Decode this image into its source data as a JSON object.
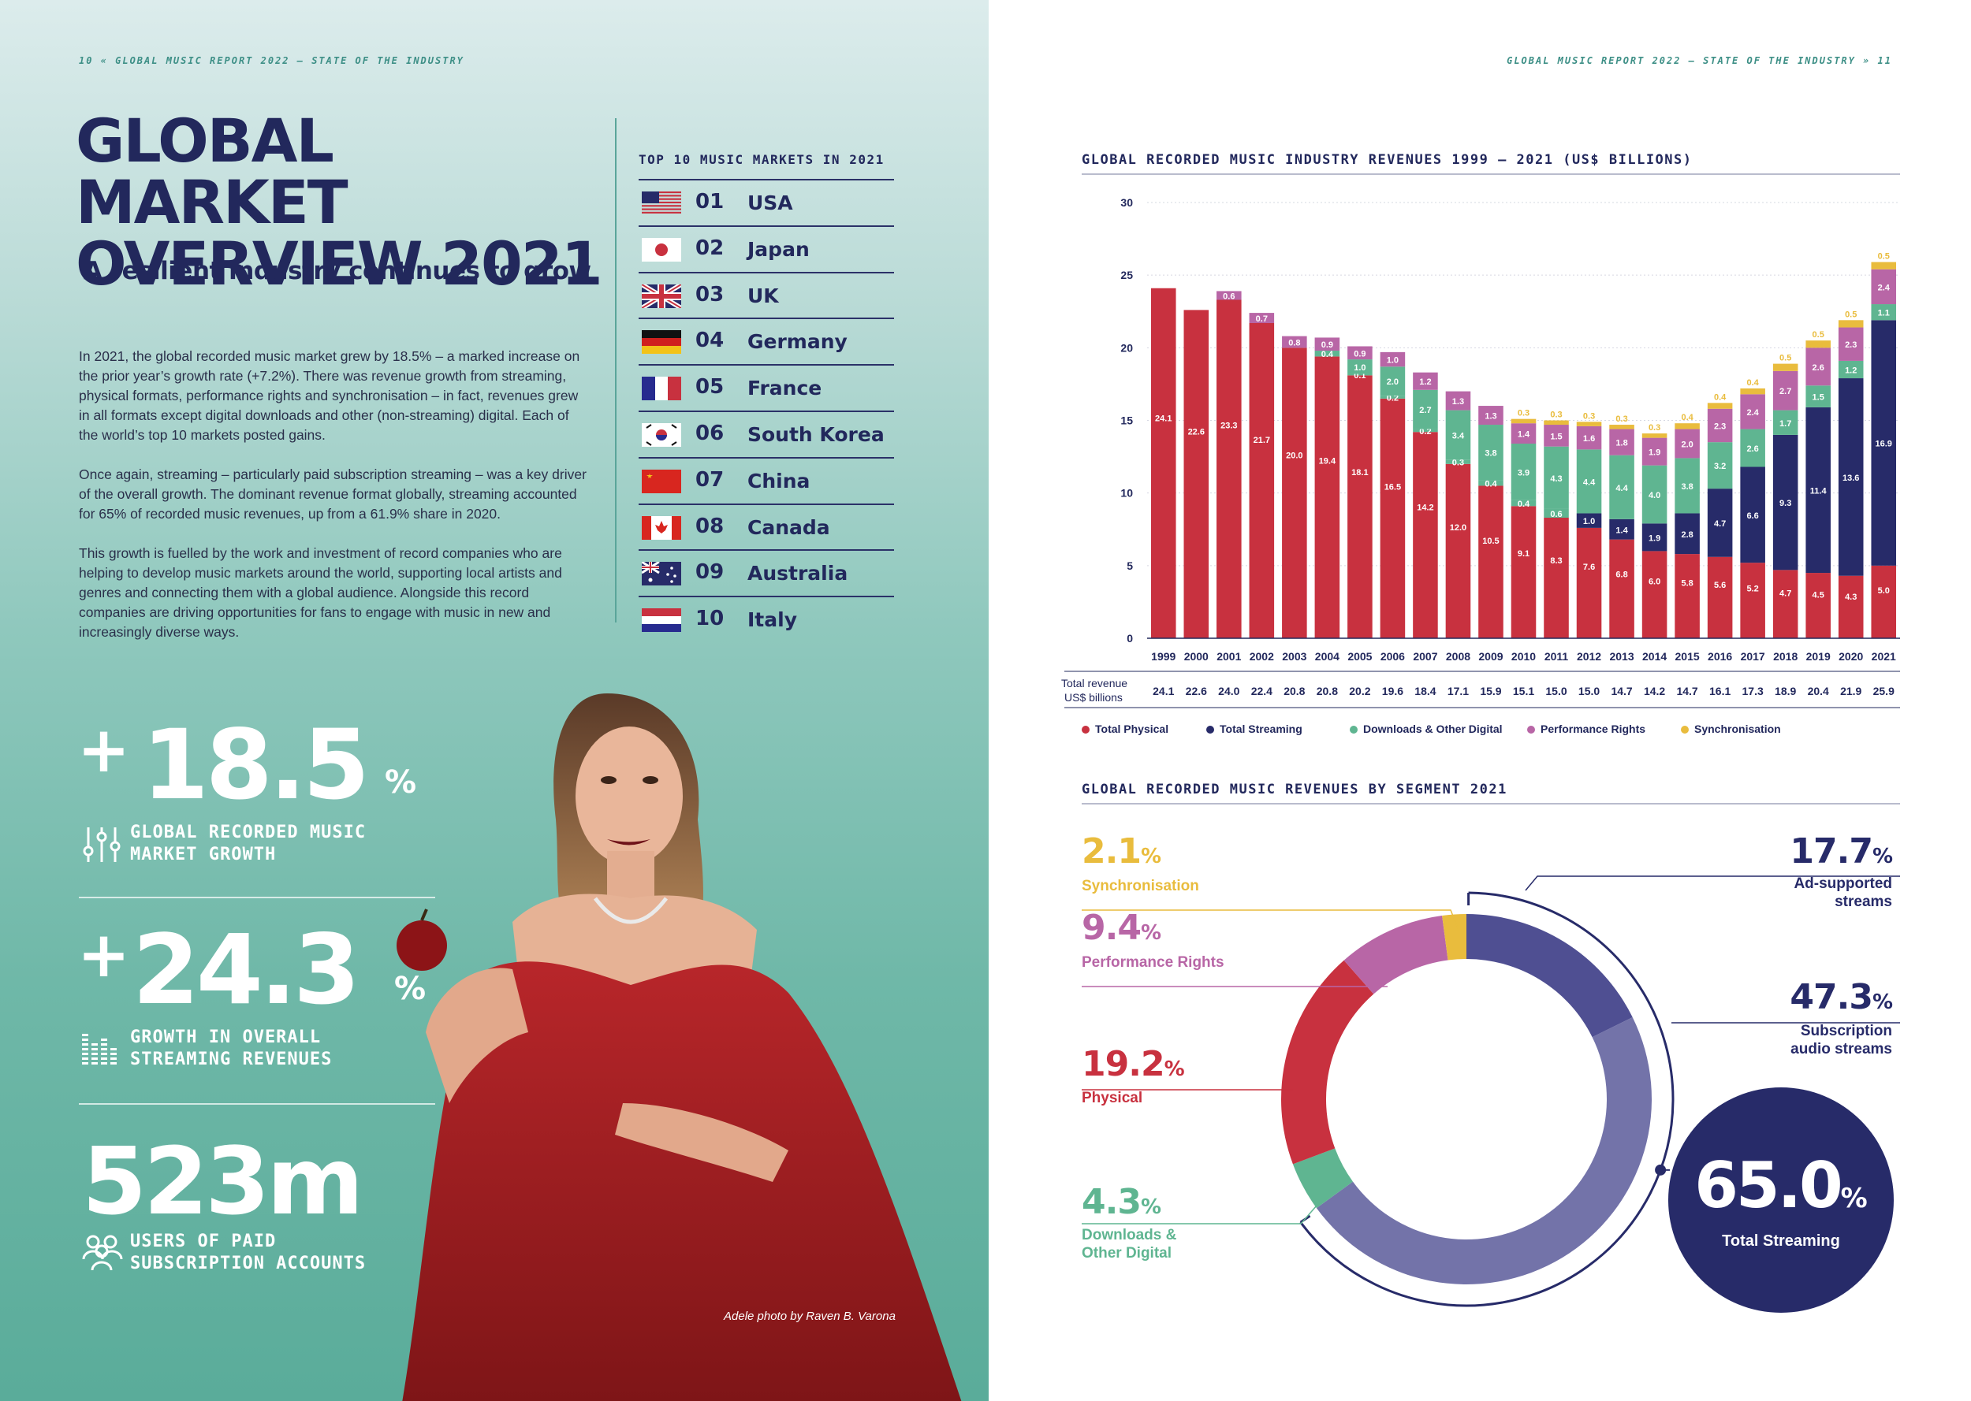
{
  "running_heads": {
    "left": "10 « GLOBAL MUSIC REPORT 2022 – STATE OF THE INDUSTRY",
    "right": "GLOBAL MUSIC REPORT 2022 – STATE OF THE INDUSTRY » 11"
  },
  "header": {
    "title_line1": "GLOBAL MARKET",
    "title_line2": "OVERVIEW 2021",
    "subtitle": "A resilient industry continues to grow"
  },
  "intro": {
    "p1": "In 2021, the global recorded music market grew by 18.5% – a marked increase on the prior year’s growth rate (+7.2%). There was revenue growth from streaming, physical formats, performance rights and synchronisation – in fact, revenues grew in all formats except digital downloads and other (non-streaming) digital. Each of the world’s top 10 markets posted gains.",
    "p2": "Once again, streaming – particularly paid subscription streaming – was a key driver of the overall growth. The dominant revenue format globally, streaming accounted for 65% of recorded music revenues, up from a 61.9% share in 2020.",
    "p3": "This growth is fuelled by the work and investment of record companies who are helping to develop music markets around the world, supporting local artists and genres and connecting them with a global audience.  Alongside this record companies are driving opportunities for fans to engage with music in new and increasingly diverse ways."
  },
  "stats": [
    {
      "prefix": "+",
      "value": "18.5",
      "suffix": "%",
      "label_line1": "GLOBAL RECORDED MUSIC",
      "label_line2": "MARKET GROWTH",
      "icon": "sliders-icon"
    },
    {
      "prefix": "+",
      "value": "24.3",
      "suffix": "%",
      "label_line1": "GROWTH IN OVERALL",
      "label_line2": "STREAMING REVENUES",
      "icon": "equalizer-icon"
    },
    {
      "prefix": "",
      "value": "523m",
      "suffix": "",
      "label_line1": "USERS OF PAID",
      "label_line2": "SUBSCRIPTION ACCOUNTS",
      "icon": "users-icon"
    }
  ],
  "top_markets": {
    "title": "TOP 10 MUSIC MARKETS IN 2021",
    "items": [
      {
        "rank": "01",
        "country": "USA",
        "flag": "usa-flag-icon"
      },
      {
        "rank": "02",
        "country": "Japan",
        "flag": "japan-flag-icon"
      },
      {
        "rank": "03",
        "country": "UK",
        "flag": "uk-flag-icon"
      },
      {
        "rank": "04",
        "country": "Germany",
        "flag": "germany-flag-icon"
      },
      {
        "rank": "05",
        "country": "France",
        "flag": "france-flag-icon"
      },
      {
        "rank": "06",
        "country": "South Korea",
        "flag": "south-korea-flag-icon"
      },
      {
        "rank": "07",
        "country": "China",
        "flag": "china-flag-icon"
      },
      {
        "rank": "08",
        "country": "Canada",
        "flag": "canada-flag-icon"
      },
      {
        "rank": "09",
        "country": "Australia",
        "flag": "australia-flag-icon"
      },
      {
        "rank": "10",
        "country": "Italy",
        "flag": "italy-flag-icon"
      }
    ]
  },
  "photo_credit": "Adele photo by Raven B. Varona",
  "colors": {
    "physical": "#c8313f",
    "streaming": "#272b69",
    "downloads": "#5fb591",
    "performance": "#b866a6",
    "sync": "#e9bc3d",
    "ad_supported": "#4f4f92",
    "subscription": "#7373a9"
  },
  "chart_data": [
    {
      "type": "bar",
      "stacked": true,
      "title": "GLOBAL RECORDED MUSIC INDUSTRY REVENUES 1999 – 2021 (US$ BILLIONS)",
      "categories": [
        "1999",
        "2000",
        "2001",
        "2002",
        "2003",
        "2004",
        "2005",
        "2006",
        "2007",
        "2008",
        "2009",
        "2010",
        "2011",
        "2012",
        "2013",
        "2014",
        "2015",
        "2016",
        "2017",
        "2018",
        "2019",
        "2020",
        "2021"
      ],
      "ylim": [
        0,
        30
      ],
      "yticks": [
        0,
        5,
        10,
        15,
        20,
        25,
        30
      ],
      "grid": true,
      "legend_position": "bottom",
      "series": [
        {
          "name": "Total Physical",
          "values": [
            24.1,
            22.6,
            23.3,
            21.7,
            20.0,
            19.4,
            18.1,
            16.5,
            14.2,
            12.0,
            10.5,
            9.1,
            8.3,
            7.6,
            6.8,
            6.0,
            5.8,
            5.6,
            5.2,
            4.7,
            4.5,
            4.3,
            5.0
          ],
          "labels": [
            "24.1",
            "22.6",
            "23.3",
            "21.7",
            "20.0",
            "19.4",
            "18.1",
            "16.5",
            "14.2",
            "12.0",
            "10.5",
            "9.1",
            "8.3",
            "7.6",
            "6.8",
            "6.0",
            "5.8",
            "5.6",
            "5.2",
            "4.7",
            "4.5",
            "4.3",
            "5.0"
          ]
        },
        {
          "name": "Total Streaming",
          "values": [
            0,
            0,
            0,
            0,
            0,
            0,
            0,
            0,
            0,
            0,
            0,
            0,
            0,
            1.0,
            1.4,
            1.9,
            2.8,
            4.7,
            6.6,
            9.3,
            11.4,
            13.6,
            16.9
          ],
          "labels": [
            "",
            "",
            "",
            "",
            "",
            "",
            "",
            "",
            "",
            "",
            "",
            "",
            "",
            "1.0",
            "1.4",
            "1.9",
            "2.8",
            "4.7",
            "6.6",
            "9.3",
            "11.4",
            "13.6",
            "16.9"
          ]
        },
        {
          "name": "Downloads & Other Digital",
          "values": [
            0,
            0,
            0,
            0,
            0,
            0.4,
            0.1,
            0.2,
            0.2,
            0.3,
            0.4,
            0.4,
            0.6,
            4.4,
            4.4,
            4.0,
            3.8,
            3.2,
            2.6,
            1.7,
            1.5,
            1.2,
            1.1
          ],
          "labels": [
            "",
            "",
            "",
            "",
            "",
            "0.4",
            "0.1",
            "0.2",
            "0.2",
            "0.3",
            "0.4",
            "0.4",
            "0.6",
            "4.4",
            "4.4",
            "4.0",
            "3.8",
            "3.2",
            "2.6",
            "1.7",
            "1.5",
            "1.2",
            "1.1"
          ]
        },
        {
          "name": "Downloads & Other Digital (upper)",
          "values": [
            0,
            0,
            0,
            0,
            0,
            0,
            1.0,
            2.0,
            2.7,
            3.4,
            3.8,
            3.9,
            4.3,
            0,
            0,
            0,
            0,
            0,
            0,
            0,
            0,
            0,
            0
          ],
          "labels": [
            "",
            "",
            "",
            "",
            "",
            "",
            "1.0",
            "2.0",
            "2.7",
            "3.4",
            "3.8",
            "3.9",
            "4.3",
            "",
            "",
            "",
            "",
            "",
            "",
            "",
            "",
            "",
            ""
          ]
        },
        {
          "name": "Performance Rights",
          "values": [
            0,
            0,
            0.6,
            0.7,
            0.8,
            0.9,
            0.9,
            1.0,
            1.2,
            1.3,
            1.3,
            1.4,
            1.5,
            1.6,
            1.8,
            1.9,
            2.0,
            2.3,
            2.4,
            2.7,
            2.6,
            2.3,
            2.4
          ],
          "labels": [
            "",
            "",
            "0.6",
            "0.7",
            "0.8",
            "0.9",
            "0.9",
            "1.0",
            "1.2",
            "1.3",
            "1.3",
            "1.4",
            "1.5",
            "1.6",
            "1.8",
            "1.9",
            "2.0",
            "2.3",
            "2.4",
            "2.7",
            "2.6",
            "2.3",
            "2.4"
          ]
        },
        {
          "name": "Synchronisation",
          "values": [
            0,
            0,
            0,
            0,
            0,
            0,
            0,
            0,
            0,
            0,
            0,
            0.3,
            0.3,
            0.3,
            0.3,
            0.3,
            0.4,
            0.4,
            0.4,
            0.5,
            0.5,
            0.5,
            0.5
          ],
          "labels": [
            "",
            "",
            "",
            "",
            "",
            "",
            "",
            "",
            "",
            "",
            "",
            "0.3",
            "0.3",
            "0.3",
            "0.3",
            "0.3",
            "0.4",
            "0.4",
            "0.4",
            "0.5",
            "0.5",
            "0.5",
            "0.5"
          ]
        }
      ],
      "total_revenue_label_line1": "Total revenue",
      "total_revenue_label_line2": "US$ billions",
      "totals": [
        "24.1",
        "22.6",
        "24.0",
        "22.4",
        "20.8",
        "20.8",
        "20.2",
        "19.6",
        "18.4",
        "17.1",
        "15.9",
        "15.1",
        "15.0",
        "15.0",
        "14.7",
        "14.2",
        "14.7",
        "16.1",
        "17.3",
        "18.9",
        "20.4",
        "21.9",
        "25.9"
      ],
      "legend": [
        "Total Physical",
        "Total Streaming",
        "Downloads & Other Digital",
        "Performance Rights",
        "Synchronisation"
      ]
    },
    {
      "type": "pie",
      "donut": true,
      "title": "GLOBAL RECORDED MUSIC REVENUES BY SEGMENT 2021",
      "slices": [
        {
          "name": "Ad-supported streams",
          "value": 17.7,
          "pct": "17.7",
          "color": "#4f4f92"
        },
        {
          "name": "Subscription audio streams",
          "value": 47.3,
          "pct": "47.3",
          "color": "#7373a9"
        },
        {
          "name": "Downloads & Other Digital",
          "value": 4.3,
          "pct": "4.3",
          "color": "#5fb591"
        },
        {
          "name": "Physical",
          "value": 19.2,
          "pct": "19.2",
          "color": "#c8313f"
        },
        {
          "name": "Performance Rights",
          "value": 9.4,
          "pct": "9.4",
          "color": "#b866a6"
        },
        {
          "name": "Synchronisation",
          "value": 2.1,
          "pct": "2.1",
          "color": "#e9bc3d"
        }
      ],
      "labels": {
        "sync": "Synchronisation",
        "performance": "Performance Rights",
        "physical": "Physical",
        "downloads_line1": "Downloads &",
        "downloads_line2": "Other Digital",
        "ad_line1": "Ad-supported",
        "ad_line2": "streams",
        "sub_line1": "Subscription",
        "sub_line2": "audio streams"
      },
      "total_streaming": {
        "value": "65.0",
        "suffix": "%",
        "label": "Total Streaming"
      },
      "percent_sign": "%"
    }
  ]
}
